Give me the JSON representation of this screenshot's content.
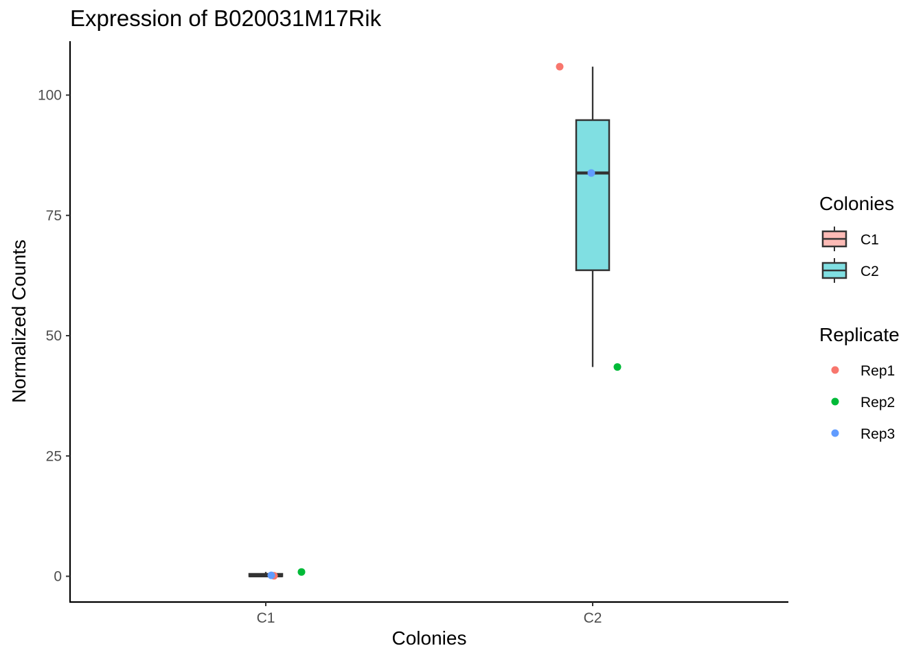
{
  "chart_data": {
    "type": "box",
    "title": "Expression of B020031M17Rik",
    "xlabel": "Colonies",
    "ylabel": "Normalized Counts",
    "categories": [
      "C1",
      "C2"
    ],
    "ylim": [
      -5,
      110
    ],
    "yticks": [
      0,
      25,
      50,
      75,
      100
    ],
    "grid": false,
    "boxes": [
      {
        "category": "C1",
        "fill": "#F8766D",
        "min": 0.0,
        "q1": 0.0,
        "median": 0.1,
        "q3": 0.5,
        "max": 0.9
      },
      {
        "category": "C2",
        "fill": "#00BFC4",
        "min": 43.5,
        "q1": 63.6,
        "median": 83.8,
        "q3": 94.8,
        "max": 105.9
      }
    ],
    "points": [
      {
        "category": "C1",
        "replicate": "Rep1",
        "x_offset": 0.03,
        "y": 0.1
      },
      {
        "category": "C1",
        "replicate": "Rep2",
        "x_offset": 0.13,
        "y": 0.9
      },
      {
        "category": "C1",
        "replicate": "Rep3",
        "x_offset": 0.02,
        "y": 0.2
      },
      {
        "category": "C2",
        "replicate": "Rep1",
        "x_offset": -0.12,
        "y": 105.9
      },
      {
        "category": "C2",
        "replicate": "Rep2",
        "x_offset": 0.09,
        "y": 43.5
      },
      {
        "category": "C2",
        "replicate": "Rep3",
        "x_offset": -0.005,
        "y": 83.8
      }
    ],
    "legends": [
      {
        "title": "Colonies",
        "kind": "box",
        "entries": [
          {
            "label": "C1",
            "color": "#F8766D"
          },
          {
            "label": "C2",
            "color": "#00BFC4"
          }
        ]
      },
      {
        "title": "Replicate",
        "kind": "point",
        "entries": [
          {
            "label": "Rep1",
            "color": "#F8766D"
          },
          {
            "label": "Rep2",
            "color": "#00BA38"
          },
          {
            "label": "Rep3",
            "color": "#619CFF"
          }
        ]
      }
    ],
    "legend_position": "right",
    "replicate_colors": {
      "Rep1": "#F8766D",
      "Rep2": "#00BA38",
      "Rep3": "#619CFF"
    }
  }
}
